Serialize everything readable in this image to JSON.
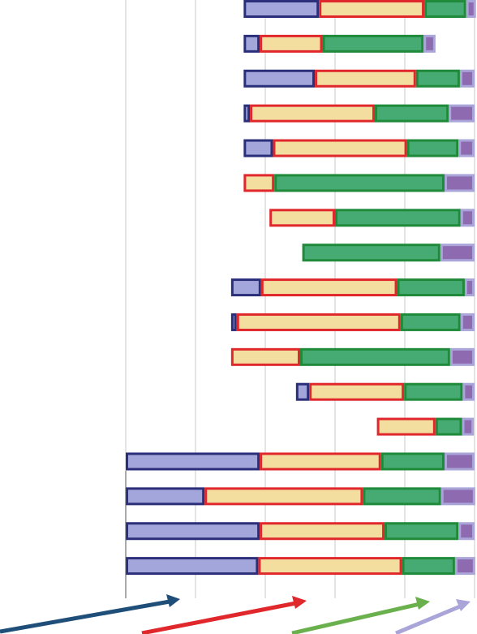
{
  "chart_data": {
    "type": "bar",
    "orientation": "horizontal",
    "stacked": true,
    "categories": [
      null,
      null,
      null,
      null,
      null,
      null,
      null,
      null,
      null,
      null,
      null,
      null,
      null,
      null,
      null,
      null,
      null
    ],
    "starts": [
      1.69,
      1.69,
      1.69,
      1.69,
      1.69,
      1.69,
      2.06,
      2.53,
      1.51,
      1.51,
      1.51,
      2.44,
      3.6,
      0,
      0,
      0,
      0
    ],
    "series": [
      {
        "color": "#a3a6da",
        "stroke": "#2b2f7a",
        "values": [
          1.08,
          0.23,
          1.02,
          0.09,
          0.42,
          0,
          0,
          0,
          0.43,
          0.08,
          0,
          0.19,
          0,
          1.92,
          1.13,
          1.92,
          1.9
        ]
      },
      {
        "color": "#f3dea0",
        "stroke": "#e0282c",
        "values": [
          1.51,
          0.9,
          1.45,
          1.79,
          1.92,
          0.44,
          0.94,
          0,
          1.95,
          2.35,
          0.99,
          1.36,
          0.84,
          1.74,
          2.27,
          1.79,
          2.06
        ]
      },
      {
        "color": "#45ab72",
        "stroke": "#1f8a3a",
        "values": [
          0.6,
          1.45,
          0.63,
          1.06,
          0.74,
          2.44,
          1.8,
          1.98,
          0.97,
          0.86,
          2.15,
          0.84,
          0.38,
          0.91,
          1.12,
          1.06,
          0.76
        ]
      },
      {
        "color": "#8e6bb0",
        "stroke": "#aaa5d8",
        "values": [
          0.14,
          0.17,
          0.21,
          0.37,
          0.23,
          0.43,
          0.2,
          0.49,
          0.14,
          0.2,
          0.35,
          0.17,
          0.17,
          0.43,
          0.49,
          0.23,
          0.29
        ]
      }
    ],
    "xlim": [
      0,
      5
    ],
    "xticks": [
      0,
      1,
      2,
      3,
      4,
      5
    ],
    "grid": true
  }
}
